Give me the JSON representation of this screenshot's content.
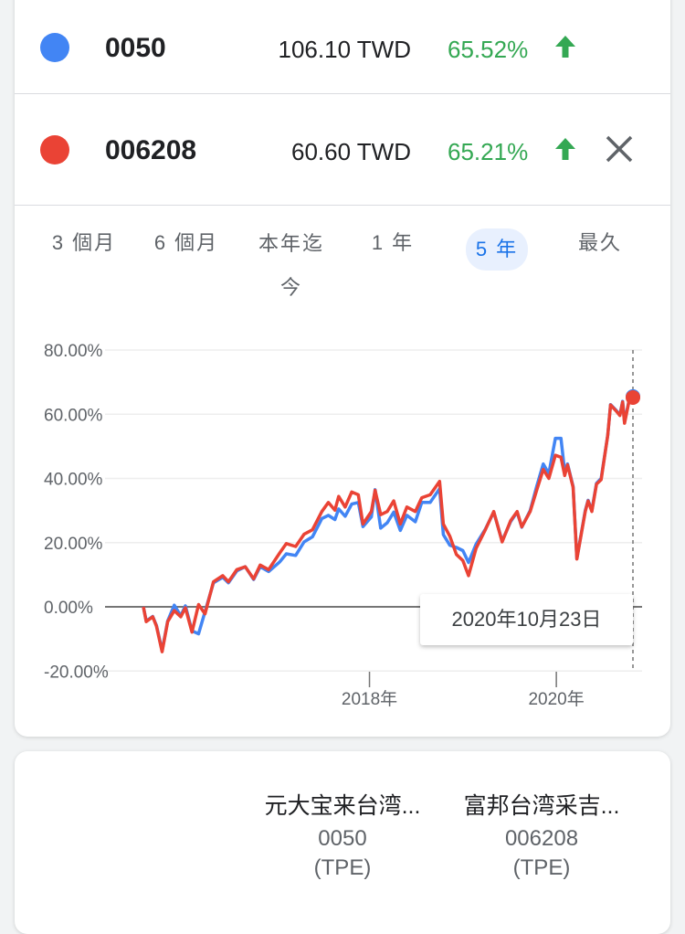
{
  "comparisons": [
    {
      "ticker": "0050",
      "price": "106.10 TWD",
      "change": "65.52%",
      "direction": "up",
      "color": "#4285f4",
      "name": "元大宝来台湾...",
      "exchange": "(TPE)"
    },
    {
      "ticker": "006208",
      "price": "60.60 TWD",
      "change": "65.21%",
      "direction": "up",
      "color": "#ea4335",
      "name": "富邦台湾采吉...",
      "exchange": "(TPE)"
    }
  ],
  "colors": {
    "positive": "#34a853",
    "accent": "#1a73e8"
  },
  "icons": {
    "up": "arrow-up-icon",
    "close": "close-icon"
  },
  "ranges": [
    {
      "label": "3 個月",
      "selected": false
    },
    {
      "label": "6 個月",
      "selected": false
    },
    {
      "label": "本年迄今",
      "selected": false
    },
    {
      "label": "1 年",
      "selected": false
    },
    {
      "label": "5 年",
      "selected": true
    },
    {
      "label": "最久",
      "selected": false
    }
  ],
  "tooltip": {
    "date": "2020年10月23日"
  },
  "chart_data": {
    "type": "line",
    "ylim": [
      -20,
      80
    ],
    "yticks": [
      "80.00%",
      "60.00%",
      "40.00%",
      "20.00%",
      "0.00%",
      "-20.00%"
    ],
    "ytick_values": [
      80,
      60,
      40,
      20,
      0,
      -20
    ],
    "xlim": [
      2015.58,
      2020.82
    ],
    "xticks": [
      {
        "value": 2018,
        "label": "2018年"
      },
      {
        "value": 2020,
        "label": "2020年"
      }
    ],
    "grid": true,
    "x": [
      2015.58,
      2015.61,
      2015.68,
      2015.72,
      2015.78,
      2015.84,
      2015.91,
      2015.98,
      2016.03,
      2016.1,
      2016.17,
      2016.24,
      2016.33,
      2016.43,
      2016.49,
      2016.58,
      2016.67,
      2016.76,
      2016.83,
      2016.92,
      2017.04,
      2017.11,
      2017.21,
      2017.3,
      2017.39,
      2017.49,
      2017.56,
      2017.63,
      2017.67,
      2017.74,
      2017.81,
      2017.88,
      2017.93,
      2018.02,
      2018.06,
      2018.12,
      2018.19,
      2018.26,
      2018.33,
      2018.4,
      2018.49,
      2018.56,
      2018.65,
      2018.75,
      2018.79,
      2018.86,
      2018.93,
      2019.0,
      2019.06,
      2019.14,
      2019.24,
      2019.33,
      2019.42,
      2019.51,
      2019.58,
      2019.63,
      2019.72,
      2019.79,
      2019.86,
      2019.92,
      2019.99,
      2020.05,
      2020.09,
      2020.12,
      2020.18,
      2020.22,
      2020.31,
      2020.34,
      2020.38,
      2020.43,
      2020.48,
      2020.55,
      2020.58,
      2020.64,
      2020.68,
      2020.71,
      2020.73,
      2020.78,
      2020.82
    ],
    "series": [
      {
        "ticker": "0050",
        "color": "#4285f4",
        "values": [
          0,
          -4.4,
          -3,
          -5.8,
          -13.6,
          -4.4,
          0.5,
          -2.8,
          0.3,
          -7.5,
          -8.4,
          -1.5,
          7.5,
          9.2,
          7.5,
          11.2,
          12.5,
          8.5,
          12.5,
          11,
          14,
          16.5,
          16,
          20.2,
          21.8,
          27.5,
          28.5,
          27.2,
          30.5,
          28.2,
          32,
          32.5,
          25,
          28,
          36.5,
          24.5,
          26.2,
          29.5,
          23.8,
          28.5,
          26.5,
          32.5,
          32.5,
          36.8,
          22.5,
          19.2,
          18.5,
          17.5,
          13.8,
          19.5,
          24.2,
          29.5,
          20.5,
          26.5,
          29.5,
          24.8,
          30,
          37.5,
          44.5,
          41.5,
          52.5,
          52.5,
          42,
          44.5,
          37.5,
          15,
          30,
          33.2,
          30,
          38.5,
          40,
          53.4,
          63,
          61.2,
          59.8,
          64,
          57.5,
          64.5,
          65.52
        ]
      },
      {
        "ticker": "006208",
        "color": "#ea4335",
        "values": [
          0,
          -4.6,
          -3.1,
          -6,
          -14,
          -4.6,
          -1.2,
          -3.1,
          -0.3,
          -7.9,
          0.7,
          -2.2,
          7.8,
          9.7,
          7.8,
          11.6,
          12.5,
          8.7,
          13,
          11.6,
          16.8,
          19.7,
          18.8,
          22.6,
          24,
          29.7,
          32.5,
          30.1,
          34.4,
          31.1,
          35.8,
          34.9,
          25.8,
          29.7,
          36.3,
          28.7,
          29.7,
          33,
          25.8,
          31.1,
          29.7,
          34,
          34.9,
          39.1,
          25.8,
          22,
          16.3,
          14.4,
          9.7,
          18.2,
          24,
          29.7,
          20.2,
          26.8,
          29.7,
          24.9,
          29.7,
          36.3,
          42.8,
          40,
          47.2,
          46.6,
          40.9,
          44.2,
          37.2,
          14.9,
          29.7,
          33,
          29.7,
          38.2,
          39.6,
          53.4,
          62.9,
          61,
          59.6,
          63.8,
          57.2,
          64.3,
          65.21
        ]
      }
    ]
  }
}
